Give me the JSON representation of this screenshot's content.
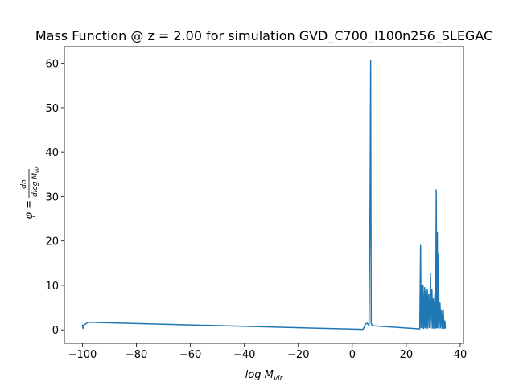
{
  "chart_data": {
    "type": "line",
    "title": "Mass Function @ z = 2.00 for simulation GVD_C700_l100n256_SLEGAC",
    "xlabel": {
      "base": "log M",
      "sub": "vir"
    },
    "ylabel": {
      "lhs": "φ =",
      "num": "dn",
      "den": "dlog M",
      "sub": "vir"
    },
    "x": [
      -100,
      -99.8,
      -99.5,
      -98,
      4,
      4.8,
      5.5,
      6.2,
      6.6,
      6.8,
      7.0,
      7.3,
      8,
      25,
      25.3,
      25.5,
      25.7,
      26,
      26.2,
      26.5,
      26.8,
      27,
      27.3,
      27.5,
      27.8,
      28,
      28.3,
      28.6,
      29,
      29.2,
      29.5,
      29.8,
      30,
      30.3,
      30.6,
      30.9,
      31.1,
      31.3,
      31.5,
      31.7,
      31.9,
      32.2,
      32.5,
      32.8,
      33.1,
      33.4,
      33.7,
      34,
      34.3,
      34.5
    ],
    "values": [
      1.2,
      0.3,
      1.0,
      1.7,
      0.1,
      1.2,
      1.5,
      1.0,
      30,
      60.7,
      1.5,
      1.0,
      0.9,
      0.2,
      19,
      0.5,
      10,
      0.4,
      10,
      0.3,
      9.5,
      0.5,
      8.8,
      0.3,
      9.0,
      0.4,
      8,
      0.5,
      12.6,
      0.3,
      9,
      0.4,
      7,
      0.3,
      8,
      0.5,
      31.5,
      0.4,
      22,
      0.5,
      17,
      0.3,
      6,
      0.4,
      4.5,
      0.3,
      4.5,
      0.3,
      2,
      0.3
    ],
    "color": "#1f77b4",
    "xlim": [
      -106.7,
      41.2
    ],
    "xticks": [
      {
        "value": -100,
        "label": "−100"
      },
      {
        "value": -80,
        "label": "−80"
      },
      {
        "value": -60,
        "label": "−60"
      },
      {
        "value": -40,
        "label": "−40"
      },
      {
        "value": -20,
        "label": "−20"
      },
      0,
      20,
      40
    ],
    "ylim": [
      -3.04,
      63.74
    ],
    "yticks": [
      0,
      10,
      20,
      30,
      40,
      50,
      60
    ],
    "grid": false
  }
}
